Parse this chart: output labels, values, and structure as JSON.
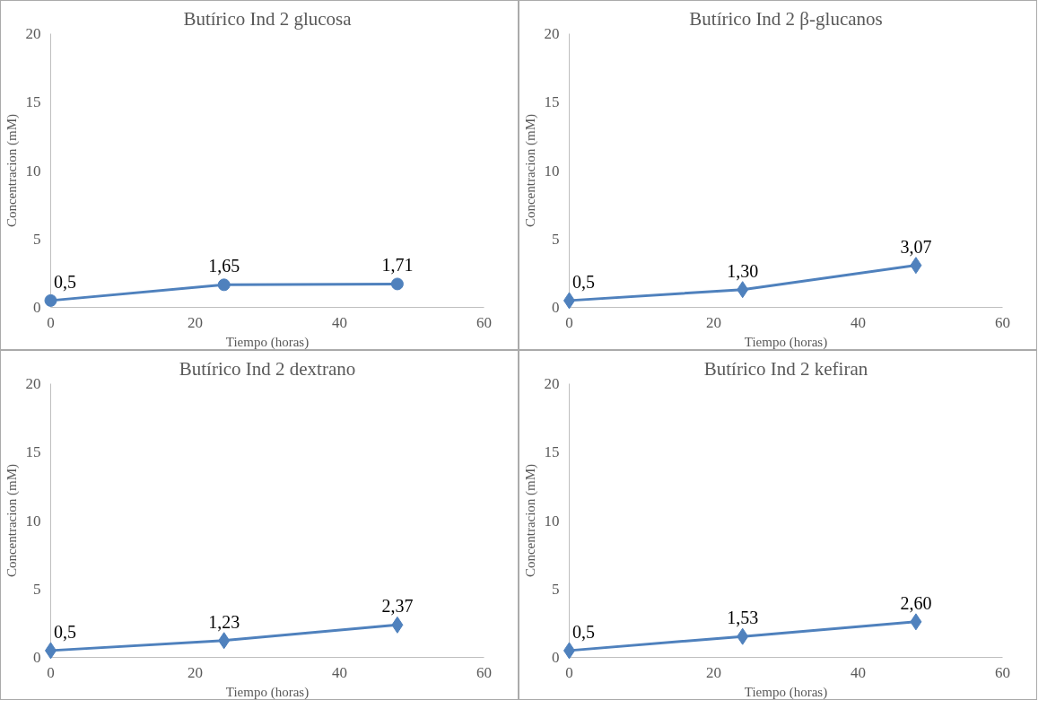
{
  "chart_data": [
    {
      "type": "line",
      "title": "Butírico Ind 2 glucosa",
      "xlabel": "Tiempo (horas)",
      "ylabel": "Concentracion (mM)",
      "x": [
        0,
        24,
        48
      ],
      "marker": "circle",
      "xlim": [
        0,
        60
      ],
      "ylim": [
        0,
        20
      ],
      "xticks": [
        0,
        20,
        40,
        60
      ],
      "yticks": [
        0,
        5,
        10,
        15,
        20
      ],
      "series": [
        {
          "color": "#4f81bd",
          "values": [
            0.5,
            1.65,
            1.71
          ],
          "value_labels": [
            "0,5",
            "1,65",
            "1,71"
          ]
        }
      ]
    },
    {
      "type": "line",
      "title": "Butírico Ind 2 β-glucanos",
      "xlabel": "Tiempo (horas)",
      "ylabel": "Concentracion (mM)",
      "x": [
        0,
        24,
        48
      ],
      "marker": "diamond",
      "xlim": [
        0,
        60
      ],
      "ylim": [
        0,
        20
      ],
      "xticks": [
        0,
        20,
        40,
        60
      ],
      "yticks": [
        0,
        5,
        10,
        15,
        20
      ],
      "series": [
        {
          "color": "#4f81bd",
          "values": [
            0.5,
            1.3,
            3.07
          ],
          "value_labels": [
            "0,5",
            "1,30",
            "3,07"
          ]
        }
      ]
    },
    {
      "type": "line",
      "title": "Butírico Ind 2 dextrano",
      "xlabel": "Tiempo (horas)",
      "ylabel": "Concentracion (mM)",
      "x": [
        0,
        24,
        48
      ],
      "marker": "diamond",
      "xlim": [
        0,
        60
      ],
      "ylim": [
        0,
        20
      ],
      "xticks": [
        0,
        20,
        40,
        60
      ],
      "yticks": [
        0,
        5,
        10,
        15,
        20
      ],
      "series": [
        {
          "color": "#4f81bd",
          "values": [
            0.5,
            1.23,
            2.37
          ],
          "value_labels": [
            "0,5",
            "1,23",
            "2,37"
          ]
        }
      ]
    },
    {
      "type": "line",
      "title": "Butírico Ind 2 kefiran",
      "xlabel": "Tiempo (horas)",
      "ylabel": "Concentracion (mM)",
      "x": [
        0,
        24,
        48
      ],
      "marker": "diamond",
      "xlim": [
        0,
        60
      ],
      "ylim": [
        0,
        20
      ],
      "xticks": [
        0,
        20,
        40,
        60
      ],
      "yticks": [
        0,
        5,
        10,
        15,
        20
      ],
      "series": [
        {
          "color": "#4f81bd",
          "values": [
            0.5,
            1.53,
            2.6
          ],
          "value_labels": [
            "0,5",
            "1,53",
            "2,60"
          ]
        }
      ]
    }
  ]
}
